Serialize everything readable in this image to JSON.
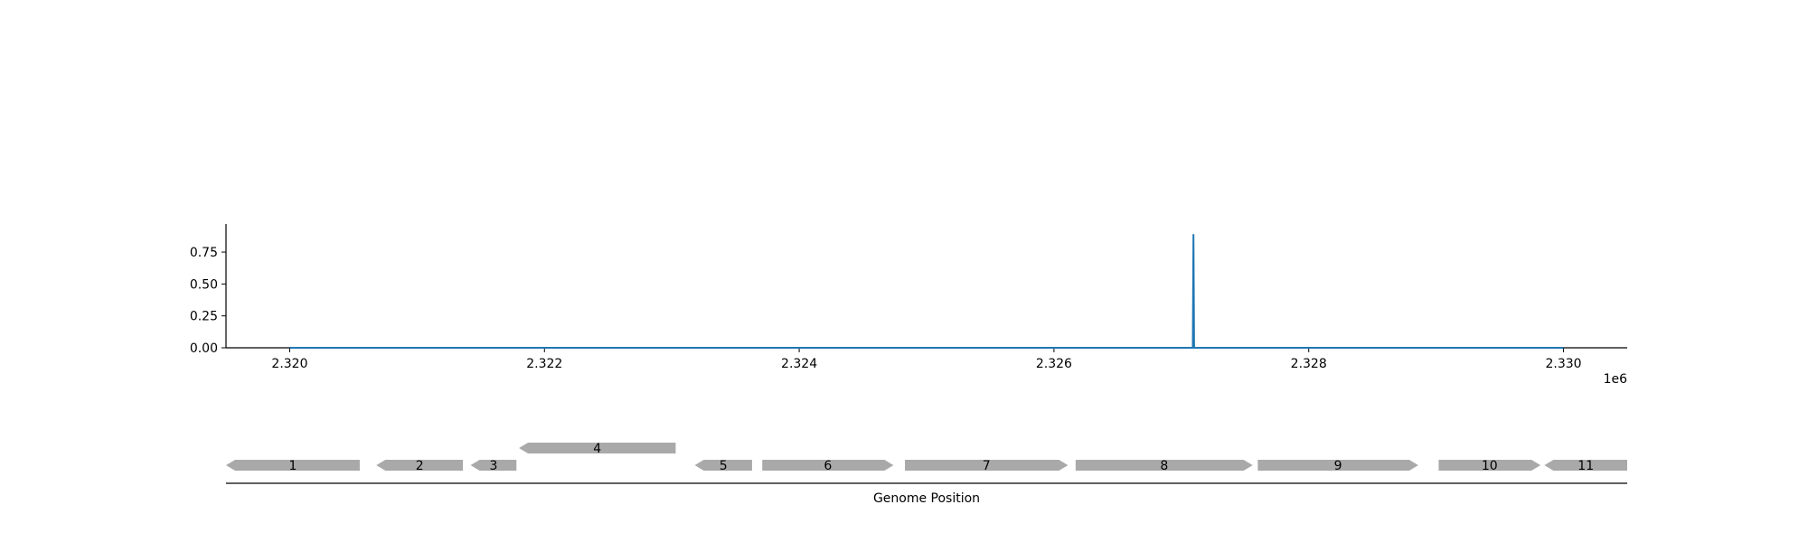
{
  "chart_data": [
    {
      "type": "line",
      "title": "",
      "xlabel": "",
      "ylabel": "",
      "x_offset_label": "1e6",
      "xlim": [
        2319500,
        2330500
      ],
      "ylim": [
        0,
        0.97
      ],
      "x_ticks": [
        2320000,
        2322000,
        2324000,
        2326000,
        2328000,
        2330000
      ],
      "x_tick_labels": [
        "2.320",
        "2.322",
        "2.324",
        "2.326",
        "2.328",
        "2.330"
      ],
      "y_ticks": [
        0,
        0.25,
        0.5,
        0.75
      ],
      "y_tick_labels": [
        "0.00",
        "0.25",
        "0.50",
        "0.75"
      ],
      "grid": false,
      "color": "#1f77b4",
      "series": [
        {
          "x": [
            2320000,
            2327090,
            2327095,
            2327100,
            2330000
          ],
          "y": [
            0,
            0,
            0.89,
            0,
            0
          ]
        }
      ]
    },
    {
      "type": "gene-track",
      "xlabel": "Genome Position",
      "feature_color": "#a9a9a9",
      "genes": [
        {
          "label": "1",
          "start": 2319500,
          "end": 2320550,
          "strand": "-",
          "row": 0
        },
        {
          "label": "2",
          "start": 2320680,
          "end": 2321360,
          "strand": "-",
          "row": 0
        },
        {
          "label": "3",
          "start": 2321420,
          "end": 2321780,
          "strand": "-",
          "row": 0
        },
        {
          "label": "4",
          "start": 2321800,
          "end": 2323030,
          "strand": "-",
          "row": 1
        },
        {
          "label": "5",
          "start": 2323180,
          "end": 2323630,
          "strand": "-",
          "row": 0
        },
        {
          "label": "6",
          "start": 2323710,
          "end": 2324740,
          "strand": "+",
          "row": 0
        },
        {
          "label": "7",
          "start": 2324830,
          "end": 2326110,
          "strand": "+",
          "row": 0
        },
        {
          "label": "8",
          "start": 2326170,
          "end": 2327560,
          "strand": "+",
          "row": 0
        },
        {
          "label": "9",
          "start": 2327600,
          "end": 2328860,
          "strand": "+",
          "row": 0
        },
        {
          "label": "10",
          "start": 2329020,
          "end": 2329820,
          "strand": "+",
          "row": 0
        },
        {
          "label": "11",
          "start": 2329850,
          "end": 2330500,
          "strand": "-",
          "row": 0
        }
      ]
    }
  ]
}
